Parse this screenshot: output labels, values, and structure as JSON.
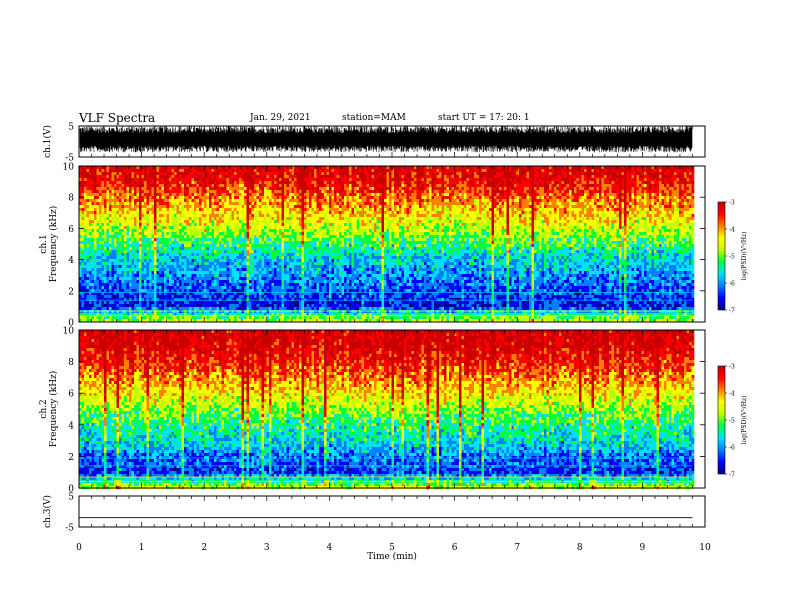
{
  "header": {
    "title": "VLF Spectra",
    "date": "Jan. 29, 2021",
    "station": "station=MAM",
    "start": "start UT =   17: 20: 1"
  },
  "colors": {
    "colormap": [
      "#00008c",
      "#0000ff",
      "#0080ff",
      "#00e0ff",
      "#00ff40",
      "#c0ff00",
      "#ffff00",
      "#ff8000",
      "#ff0000",
      "#c80000"
    ],
    "trace": "#000000",
    "axes": "#000000"
  },
  "chart_data": [
    {
      "type": "line",
      "ylabel": "ch.1(V)",
      "ylim": [
        -5,
        5
      ],
      "yticks": [
        "5",
        "-5"
      ],
      "xlim": [
        0,
        10
      ],
      "note_values": "dense noisy waveform filling roughly -3.5 to +5 V over the full record",
      "waveform_envelope": {
        "min": -3.5,
        "max": 5
      }
    },
    {
      "type": "heatmap",
      "ylabel": "ch.1\nFrequency (kHz)",
      "ylabel_lines": [
        "ch.1",
        "Frequency (kHz)"
      ],
      "xlim": [
        0,
        10
      ],
      "ylim": [
        0,
        10
      ],
      "yticks": [
        "0",
        "2",
        "4",
        "6",
        "8",
        "10"
      ],
      "data_extent_min": 9.8,
      "colorbar": {
        "label": "log(PSD)(V²/Hz)",
        "range": [
          -7,
          -3
        ],
        "ticks": [
          "-3",
          "-4",
          "-5",
          "-6",
          "-7"
        ]
      },
      "log_psd_profile": [
        {
          "freq_khz": 0.0,
          "log_psd": -4.6
        },
        {
          "freq_khz": 0.5,
          "log_psd": -5.4
        },
        {
          "freq_khz": 1.0,
          "log_psd": -6.4
        },
        {
          "freq_khz": 2.0,
          "log_psd": -6.2
        },
        {
          "freq_khz": 3.0,
          "log_psd": -5.9
        },
        {
          "freq_khz": 4.0,
          "log_psd": -5.7
        },
        {
          "freq_khz": 5.0,
          "log_psd": -5.2
        },
        {
          "freq_khz": 6.0,
          "log_psd": -4.7
        },
        {
          "freq_khz": 7.0,
          "log_psd": -4.3
        },
        {
          "freq_khz": 8.0,
          "log_psd": -3.9
        },
        {
          "freq_khz": 9.0,
          "log_psd": -3.5
        },
        {
          "freq_khz": 10.0,
          "log_psd": -3.3
        }
      ]
    },
    {
      "type": "heatmap",
      "ylabel": "ch.2\nFrequency (kHz)",
      "ylabel_lines": [
        "ch.2",
        "Frequency (kHz)"
      ],
      "xlim": [
        0,
        10
      ],
      "ylim": [
        0,
        10
      ],
      "yticks": [
        "0",
        "2",
        "4",
        "6",
        "8",
        "10"
      ],
      "data_extent_min": 9.8,
      "colorbar": {
        "label": "log(PSD)(V²/Hz)",
        "range": [
          -7,
          -3
        ],
        "ticks": [
          "-3",
          "-4",
          "-5",
          "-6",
          "-7"
        ]
      },
      "log_psd_profile": [
        {
          "freq_khz": 0.0,
          "log_psd": -4.6
        },
        {
          "freq_khz": 0.5,
          "log_psd": -5.5
        },
        {
          "freq_khz": 1.0,
          "log_psd": -6.3
        },
        {
          "freq_khz": 2.0,
          "log_psd": -6.0
        },
        {
          "freq_khz": 3.0,
          "log_psd": -5.6
        },
        {
          "freq_khz": 4.0,
          "log_psd": -5.3
        },
        {
          "freq_khz": 5.0,
          "log_psd": -4.9
        },
        {
          "freq_khz": 6.0,
          "log_psd": -4.4
        },
        {
          "freq_khz": 7.0,
          "log_psd": -4.0
        },
        {
          "freq_khz": 8.0,
          "log_psd": -3.6
        },
        {
          "freq_khz": 9.0,
          "log_psd": -3.3
        },
        {
          "freq_khz": 10.0,
          "log_psd": -3.2
        }
      ]
    },
    {
      "type": "line",
      "ylabel": "ch.3(V)",
      "ylim": [
        -5,
        5
      ],
      "yticks": [
        "5",
        "-5"
      ],
      "xlim": [
        0,
        10
      ],
      "x": [
        0,
        9.8
      ],
      "y": [
        -2,
        -2
      ]
    }
  ],
  "xaxis": {
    "label": "Time (min)",
    "ticks": [
      "0",
      "1",
      "2",
      "3",
      "4",
      "5",
      "6",
      "7",
      "8",
      "9",
      "10"
    ]
  }
}
